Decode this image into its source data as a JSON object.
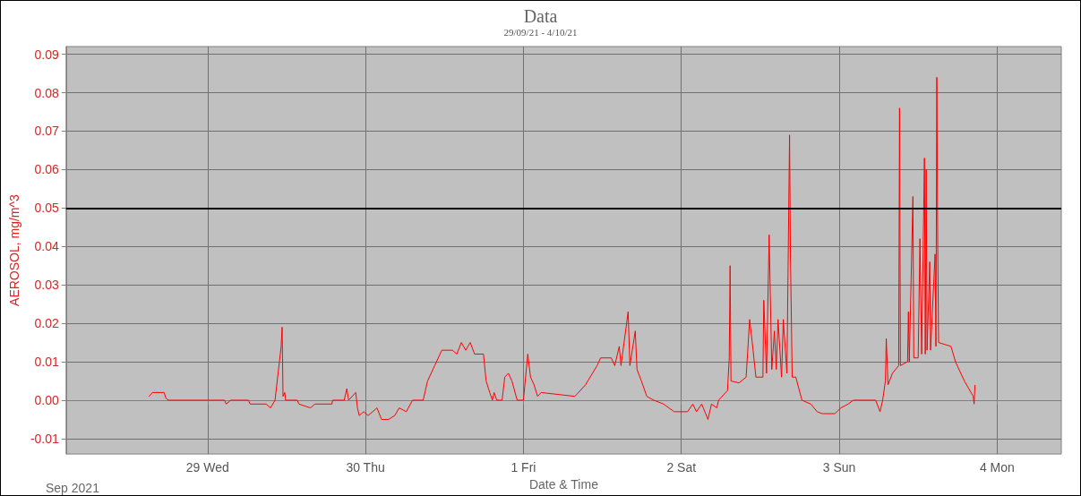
{
  "chart_data": {
    "type": "line",
    "title": "Data",
    "subtitle": "29/09/21 - 4/10/21",
    "xlabel": "Date & Time",
    "ylabel": "AEROSOL, mg/m^3",
    "annotations": [
      "Sep 2021"
    ],
    "xlim": [
      "2021-09-28T02:30",
      "2021-10-04T09:45"
    ],
    "xticks": [
      {
        "value": "2021-09-29",
        "label": "29 Wed"
      },
      {
        "value": "2021-09-30",
        "label": "30 Thu"
      },
      {
        "value": "2021-10-01",
        "label": "1 Fri"
      },
      {
        "value": "2021-10-02",
        "label": "2 Sat"
      },
      {
        "value": "2021-10-03",
        "label": "3 Sun"
      },
      {
        "value": "2021-10-04",
        "label": "4 Mon"
      }
    ],
    "ylim": [
      -0.014,
      0.092
    ],
    "yticks": [
      {
        "value": -0.01,
        "label": "-0.01"
      },
      {
        "value": 0,
        "label": "0.00"
      },
      {
        "value": 0.01,
        "label": "0.01"
      },
      {
        "value": 0.02,
        "label": "0.02"
      },
      {
        "value": 0.03,
        "label": "0.03"
      },
      {
        "value": 0.04,
        "label": "0.04"
      },
      {
        "value": 0.05,
        "label": "0.05"
      },
      {
        "value": 0.06,
        "label": "0.06"
      },
      {
        "value": 0.07,
        "label": "0.07"
      },
      {
        "value": 0.08,
        "label": "0.08"
      },
      {
        "value": 0.09,
        "label": "0.09"
      }
    ],
    "grid": true,
    "marker": "none",
    "line_style": "solid",
    "ref_lines": [
      {
        "axis": "y",
        "value": 0.05,
        "color": "#000000"
      }
    ],
    "series": [
      {
        "color": "#ff0000",
        "x": [
          "2021-09-28T15:06",
          "2021-09-28T15:38",
          "2021-09-28T17:24",
          "2021-09-28T17:40",
          "2021-09-28T18:04",
          "2021-09-29T02:34",
          "2021-09-29T02:50",
          "2021-09-29T03:30",
          "2021-09-29T06:12",
          "2021-09-29T06:28",
          "2021-09-29T08:54",
          "2021-09-29T09:34",
          "2021-09-29T10:15",
          "2021-09-29T11:11",
          "2021-09-29T11:20",
          "2021-09-29T11:28",
          "2021-09-29T11:44",
          "2021-09-29T11:52",
          "2021-09-29T13:37",
          "2021-09-29T13:53",
          "2021-09-29T15:38",
          "2021-09-29T16:19",
          "2021-09-29T18:53",
          "2021-09-29T19:01",
          "2021-09-29T20:46",
          "2021-09-29T21:10",
          "2021-09-29T21:26",
          "2021-09-29T22:31",
          "2021-09-29T22:47",
          "2021-09-29T23:03",
          "2021-09-29T23:44",
          "2021-09-30T00:24",
          "2021-09-30T01:05",
          "2021-09-30T01:45",
          "2021-09-30T02:26",
          "2021-09-30T03:30",
          "2021-09-30T04:27",
          "2021-09-30T05:07",
          "2021-09-30T06:12",
          "2021-09-30T07:09",
          "2021-09-30T08:46",
          "2021-09-30T09:26",
          "2021-09-30T10:31",
          "2021-09-30T11:36",
          "2021-09-30T13:13",
          "2021-09-30T13:53",
          "2021-09-30T14:34",
          "2021-09-30T15:14",
          "2021-09-30T15:55",
          "2021-09-30T16:35",
          "2021-09-30T17:56",
          "2021-09-30T18:20",
          "2021-09-30T18:53",
          "2021-09-30T19:17",
          "2021-09-30T19:33",
          "2021-09-30T19:57",
          "2021-09-30T20:46",
          "2021-09-30T21:10",
          "2021-09-30T21:43",
          "2021-09-30T22:15",
          "2021-09-30T23:03",
          "2021-10-01T00:00",
          "2021-10-01T00:40",
          "2021-10-01T01:05",
          "2021-10-01T01:37",
          "2021-10-01T02:09",
          "2021-10-01T02:42",
          "2021-10-01T07:49",
          "2021-10-01T09:26",
          "2021-10-01T11:12",
          "2021-10-01T11:44",
          "2021-10-01T13:21",
          "2021-10-01T13:53",
          "2021-10-01T14:34",
          "2021-10-01T14:50",
          "2021-10-01T15:55",
          "2021-10-01T16:11",
          "2021-10-01T17:00",
          "2021-10-01T17:16",
          "2021-10-01T17:56",
          "2021-10-01T18:45",
          "2021-10-01T19:49",
          "2021-10-01T21:18",
          "2021-10-01T22:55",
          "2021-10-02T00:57",
          "2021-10-02T01:45",
          "2021-10-02T02:18",
          "2021-10-02T03:06",
          "2021-10-02T04:03",
          "2021-10-02T04:35",
          "2021-10-02T05:24",
          "2021-10-02T05:40",
          "2021-10-02T07:01",
          "2021-10-02T07:17",
          "2021-10-02T07:25",
          "2021-10-02T07:33",
          "2021-10-02T08:46",
          "2021-10-02T09:51",
          "2021-10-02T10:23",
          "2021-10-02T10:47",
          "2021-10-02T11:20",
          "2021-10-02T12:24",
          "2021-10-02T12:32",
          "2021-10-02T12:57",
          "2021-10-02T13:21",
          "2021-10-02T13:45",
          "2021-10-02T14:09",
          "2021-10-02T14:26",
          "2021-10-02T14:42",
          "2021-10-02T15:14",
          "2021-10-02T15:30",
          "2021-10-02T16:03",
          "2021-10-02T16:27",
          "2021-10-02T16:35",
          "2021-10-02T16:51",
          "2021-10-02T17:24",
          "2021-10-02T18:20",
          "2021-10-02T19:41",
          "2021-10-02T20:38",
          "2021-10-02T21:26",
          "2021-10-02T23:20",
          "2021-10-03T00:16",
          "2021-10-03T01:21",
          "2021-10-03T02:10",
          "2021-10-03T05:32",
          "2021-10-03T06:12",
          "2021-10-03T06:36",
          "2021-10-03T07:01",
          "2021-10-03T07:09",
          "2021-10-03T07:25",
          "2021-10-03T08:05",
          "2021-10-03T09:02",
          "2021-10-03T09:10",
          "2021-10-03T09:18",
          "2021-10-03T10:23",
          "2021-10-03T10:31",
          "2021-10-03T10:39",
          "2021-10-03T11:12",
          "2021-10-03T11:20",
          "2021-10-03T12:00",
          "2021-10-03T12:16",
          "2021-10-03T12:32",
          "2021-10-03T12:57",
          "2021-10-03T13:05",
          "2021-10-03T13:13",
          "2021-10-03T13:21",
          "2021-10-03T13:45",
          "2021-10-03T13:53",
          "2021-10-03T14:34",
          "2021-10-03T14:42",
          "2021-10-03T14:50",
          "2021-10-03T14:58",
          "2021-10-03T15:06",
          "2021-10-03T16:59",
          "2021-10-03T17:40",
          "2021-10-03T19:01",
          "2021-10-03T20:22",
          "2021-10-03T20:30",
          "2021-10-03T20:38"
        ],
        "values": [
          0.001,
          0.002,
          0.002,
          0.0005,
          0,
          0,
          -0.001,
          0,
          0,
          -0.001,
          -0.001,
          -0.002,
          0,
          0.014,
          0.019,
          0.001,
          0.002,
          0,
          0,
          -0.001,
          -0.002,
          -0.001,
          -0.001,
          0,
          0,
          0.003,
          0,
          0.002,
          -0.002,
          -0.004,
          -0.003,
          -0.004,
          -0.003,
          -0.002,
          -0.005,
          -0.005,
          -0.004,
          -0.002,
          -0.003,
          0,
          0,
          0.005,
          0.009,
          0.013,
          0.013,
          0.012,
          0.015,
          0.013,
          0.015,
          0.012,
          0.012,
          0.005,
          0.002,
          0,
          0.002,
          0,
          0,
          0.006,
          0.007,
          0.005,
          0,
          0,
          0.012,
          0.006,
          0.004,
          0.001,
          0.002,
          0.001,
          0.004,
          0.009,
          0.011,
          0.011,
          0.009,
          0.014,
          0.009,
          0.023,
          0.009,
          0.018,
          0.008,
          0.005,
          0.001,
          0,
          -0.001,
          -0.003,
          -0.003,
          -0.001,
          -0.003,
          -0.001,
          -0.005,
          -0.001,
          -0.002,
          0,
          0.0025,
          0.011,
          0.035,
          0.005,
          0.0045,
          0.006,
          0.021,
          0.015,
          0.006,
          0.006,
          0.026,
          0.007,
          0.043,
          0.008,
          0.018,
          0.008,
          0.021,
          0.006,
          0.021,
          0.007,
          0.069,
          0.038,
          0.006,
          0.006,
          0,
          -0.001,
          -0.003,
          -0.0035,
          -0.0035,
          -0.002,
          -0.001,
          0,
          0,
          -0.003,
          0,
          0.005,
          0.016,
          0.004,
          0.007,
          0.009,
          0.076,
          0.009,
          0.01,
          0.023,
          0.01,
          0.053,
          0.011,
          0.011,
          0.042,
          0.012,
          0.063,
          0.012,
          0.06,
          0.013,
          0.036,
          0.013,
          0.038,
          0.014,
          0.084,
          0.041,
          0.015,
          0.014,
          0.01,
          0.005,
          0.001,
          -0.001,
          0.004
        ]
      }
    ]
  }
}
